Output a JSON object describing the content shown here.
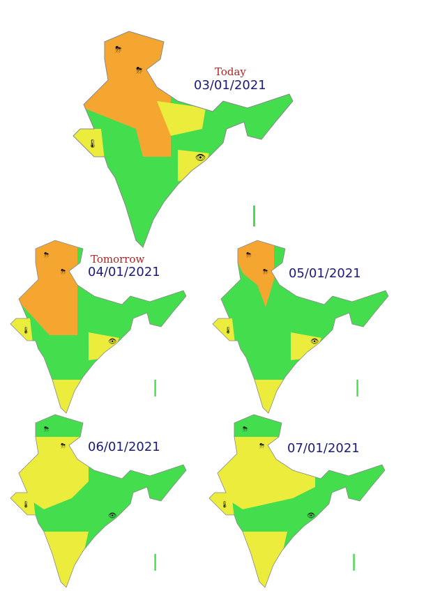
{
  "colors": {
    "no_warning": "#44dd4e",
    "watch": "#ecec3c",
    "alert": "#f5a631",
    "border": "#888888",
    "day_label": "#b22222",
    "date": "#1a1a7a"
  },
  "maps": [
    {
      "day_label": "Today",
      "date": "03/01/2021"
    },
    {
      "day_label": "Tomorrow",
      "date": "04/01/2021"
    },
    {
      "day_label": "",
      "date": "05/01/2021"
    },
    {
      "day_label": "",
      "date": "06/01/2021"
    },
    {
      "day_label": "",
      "date": "07/01/2021"
    }
  ],
  "icons": [
    "thunderstorm-icon",
    "hail-icon",
    "thermometer-icon",
    "fog-eye-icon"
  ]
}
